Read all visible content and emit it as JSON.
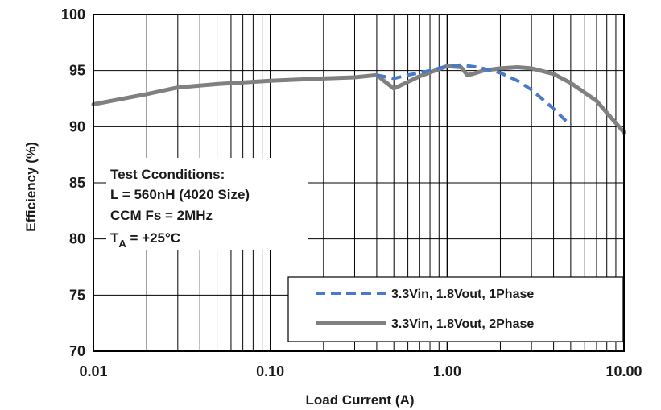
{
  "chart_data": {
    "type": "line",
    "title": "",
    "xlabel": "Load Current (A)",
    "ylabel": "Efficiency (%)",
    "x_scale": "log",
    "xlim": [
      0.01,
      10
    ],
    "ylim": [
      70,
      100
    ],
    "x_ticks": [
      {
        "value": 0.01,
        "label": "0.01"
      },
      {
        "value": 0.1,
        "label": "0.10"
      },
      {
        "value": 1,
        "label": "1.00"
      },
      {
        "value": 10,
        "label": "10.00"
      }
    ],
    "y_ticks": [
      {
        "value": 70,
        "label": "70"
      },
      {
        "value": 75,
        "label": "75"
      },
      {
        "value": 80,
        "label": "80"
      },
      {
        "value": 85,
        "label": "85"
      },
      {
        "value": 90,
        "label": "90"
      },
      {
        "value": 95,
        "label": "95"
      },
      {
        "value": 100,
        "label": "100"
      }
    ],
    "grid": true,
    "legend_position": "bottom-right",
    "annotation": {
      "lines": [
        "Test Cconditions:",
        "L = 560nH (4020 Size)",
        "CCM Fs = 2MHz"
      ],
      "temp": {
        "main": "T",
        "sub": "A",
        "rest": " = +25°C"
      }
    },
    "series": [
      {
        "name": "3.3Vin, 1.8Vout, 1Phase",
        "style": "dashed",
        "color": "#4a7ac7",
        "x": [
          0.4,
          0.5,
          0.6,
          0.8,
          1.0,
          1.2,
          1.5,
          2.0,
          2.5,
          3.0,
          4.0,
          5.0
        ],
        "y": [
          94.6,
          94.3,
          94.6,
          95.0,
          95.4,
          95.5,
          95.3,
          94.8,
          94.1,
          93.3,
          91.6,
          90.1
        ]
      },
      {
        "name": "3.3Vin, 1.8Vout, 2Phase",
        "style": "solid",
        "color": "#808080",
        "x": [
          0.01,
          0.02,
          0.03,
          0.05,
          0.1,
          0.2,
          0.3,
          0.4,
          0.5,
          0.7,
          1.0,
          1.2,
          1.3,
          1.4,
          1.6,
          2.0,
          2.5,
          3.0,
          4.0,
          5.0,
          7.0,
          10.0
        ],
        "y": [
          92.0,
          92.9,
          93.5,
          93.8,
          94.1,
          94.3,
          94.4,
          94.6,
          93.4,
          94.5,
          95.4,
          95.3,
          94.6,
          94.7,
          95.0,
          95.2,
          95.3,
          95.2,
          94.7,
          93.9,
          92.3,
          89.5
        ]
      }
    ]
  }
}
